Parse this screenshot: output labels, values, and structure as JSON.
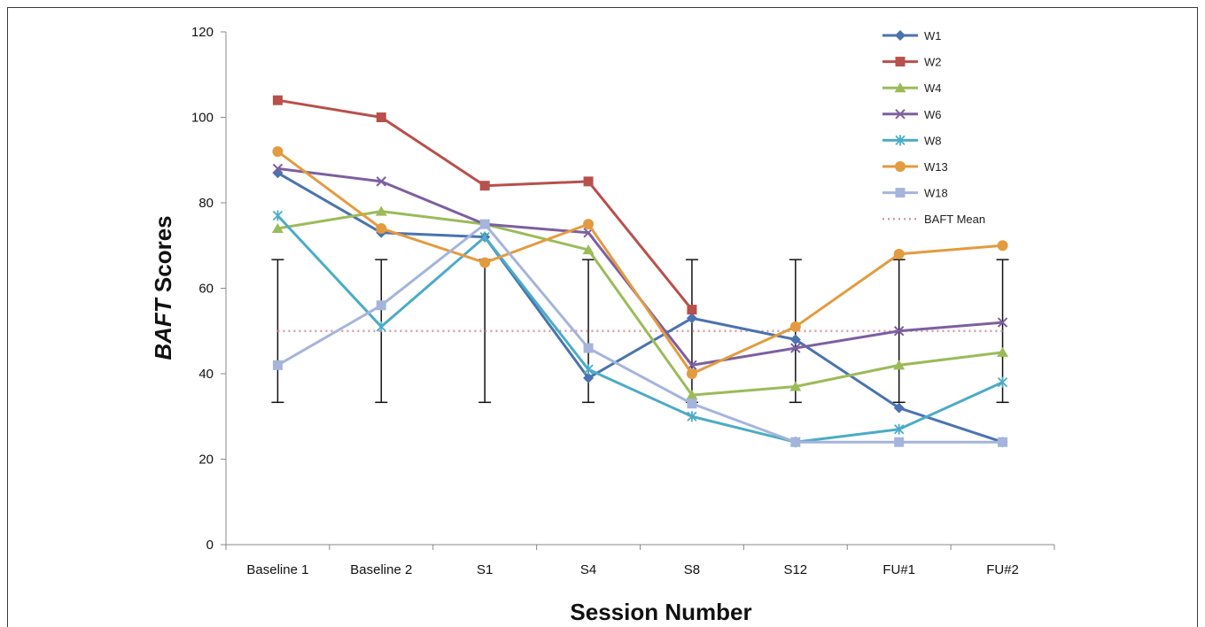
{
  "chart_data": {
    "type": "line",
    "title": "",
    "xlabel": "Session Number",
    "ylabel_italic": "BAFT",
    "ylabel_rest": " Scores",
    "ylim": [
      0,
      120
    ],
    "yticks": [
      "0",
      "20",
      "40",
      "60",
      "80",
      "100",
      "120"
    ],
    "categories": [
      "Baseline 1",
      "Baseline 2",
      "S1",
      "S4",
      "S8",
      "S12",
      "FU#1",
      "FU#2"
    ],
    "legend_position": "top-right",
    "series": [
      {
        "name": "W1",
        "color": "#4a73b0",
        "marker": "diamond",
        "values": [
          87,
          73,
          72,
          39,
          53,
          48,
          32,
          24
        ]
      },
      {
        "name": "W2",
        "color": "#b8504b",
        "marker": "square",
        "values": [
          104,
          100,
          84,
          85,
          55,
          null,
          null,
          null
        ]
      },
      {
        "name": "W4",
        "color": "#9bbb59",
        "marker": "triangle",
        "values": [
          74,
          78,
          75,
          69,
          35,
          37,
          42,
          45
        ]
      },
      {
        "name": "W6",
        "color": "#7d5fa0",
        "marker": "x",
        "values": [
          88,
          85,
          75,
          73,
          42,
          46,
          50,
          52
        ]
      },
      {
        "name": "W8",
        "color": "#4bacc6",
        "marker": "star",
        "values": [
          77,
          51,
          72,
          41,
          30,
          24,
          27,
          38
        ]
      },
      {
        "name": "W13",
        "color": "#e39b3f",
        "marker": "circle",
        "values": [
          92,
          74,
          66,
          75,
          40,
          51,
          68,
          70
        ]
      },
      {
        "name": "W18",
        "color": "#a5b4dc",
        "marker": "square",
        "values": [
          42,
          56,
          75,
          46,
          33,
          24,
          24,
          24
        ]
      }
    ],
    "mean_line": {
      "name": "BAFT Mean",
      "value": 50,
      "color": "#d99aa6"
    },
    "error_bars": {
      "center": 50,
      "low": 33.3,
      "high": 66.7,
      "color": "#111111"
    }
  }
}
